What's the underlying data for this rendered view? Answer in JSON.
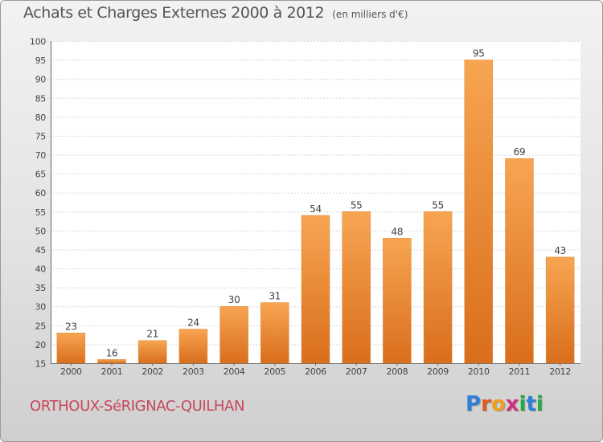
{
  "header": {
    "title": "Achats et Charges Externes 2000 à 2012",
    "subtitle": "(en milliers d'€)"
  },
  "footer": {
    "commune": "ORTHOUX-SéRIGNAC-QUILHAN",
    "logo": "Proxiti"
  },
  "colors": {
    "bar_light": "#f7a552",
    "bar_dark": "#d96e1c",
    "commune_text": "#c8465c",
    "logo_letters": [
      "#2e7fd6",
      "#e05a1a",
      "#f0a020",
      "#d13080",
      "#22aa44",
      "#2e7fd6",
      "#22aa44"
    ]
  },
  "chart_data": {
    "type": "bar",
    "title": "Achats et Charges Externes 2000 à 2012",
    "subtitle": "(en milliers d'€)",
    "categories": [
      "2000",
      "2001",
      "2002",
      "2003",
      "2004",
      "2005",
      "2006",
      "2007",
      "2008",
      "2009",
      "2010",
      "2011",
      "2012"
    ],
    "values": [
      23,
      16,
      21,
      24,
      30,
      31,
      54,
      55,
      48,
      55,
      95,
      69,
      43
    ],
    "ylim": [
      15,
      100
    ],
    "yticks": [
      15,
      20,
      25,
      30,
      35,
      40,
      45,
      50,
      55,
      60,
      65,
      70,
      75,
      80,
      85,
      90,
      95,
      100
    ],
    "grid": true,
    "xlabel": "",
    "ylabel": ""
  }
}
